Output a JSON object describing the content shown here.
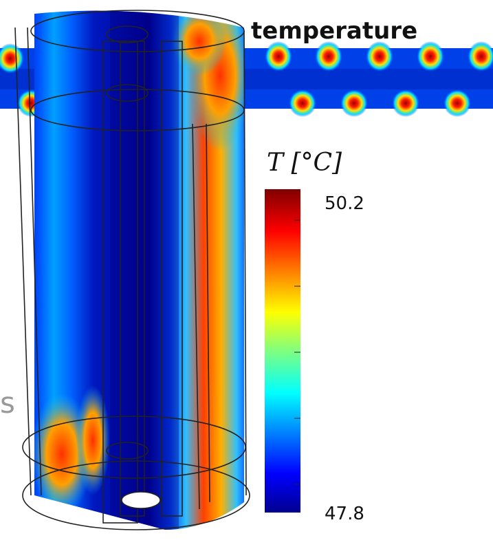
{
  "title": "temperature",
  "colorbar": {
    "label": "T [°C]",
    "max": 50.2,
    "min": 47.8
  },
  "fragment": "s"
}
